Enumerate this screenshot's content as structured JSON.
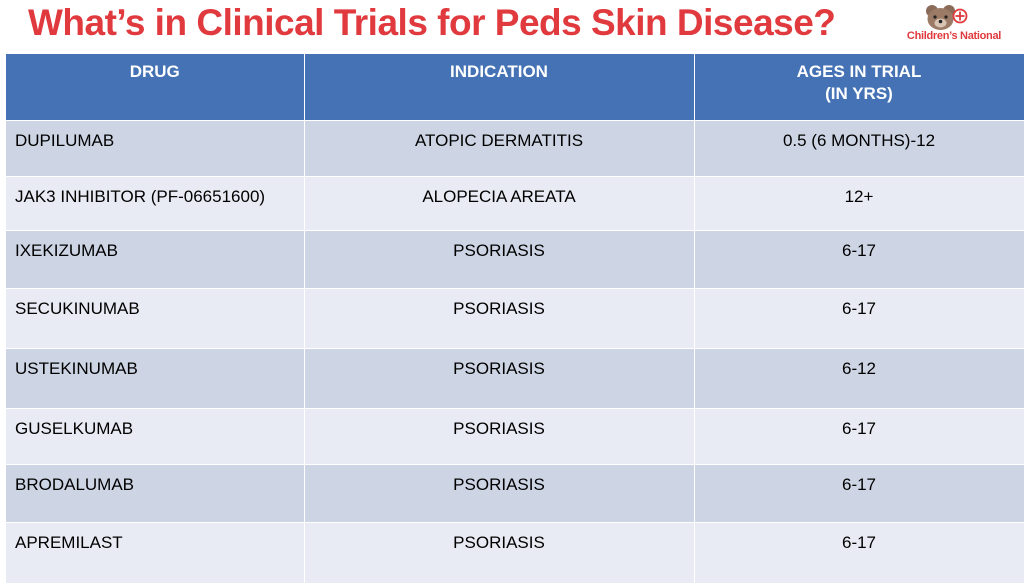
{
  "slide": {
    "title": "What’s in Clinical Trials for Peds Skin Disease?",
    "logo_text": "Children’s National"
  },
  "table": {
    "headers": [
      "DRUG",
      "INDICATION",
      "AGES IN TRIAL",
      "(IN YRS)"
    ],
    "rows": [
      {
        "drug": "DUPILUMAB",
        "indication": "ATOPIC DERMATITIS",
        "ages": "0.5 (6 MONTHS)-12"
      },
      {
        "drug": "JAK3 INHIBITOR (PF-06651600)",
        "indication": "ALOPECIA AREATA",
        "ages": "12+"
      },
      {
        "drug": "IXEKIZUMAB",
        "indication": "PSORIASIS",
        "ages": "6-17"
      },
      {
        "drug": "SECUKINUMAB",
        "indication": "PSORIASIS",
        "ages": "6-17"
      },
      {
        "drug": "USTEKINUMAB",
        "indication": "PSORIASIS",
        "ages": "6-12"
      },
      {
        "drug": "GUSELKUMAB",
        "indication": "PSORIASIS",
        "ages": "6-17"
      },
      {
        "drug": "BRODALUMAB",
        "indication": "PSORIASIS",
        "ages": "6-17"
      },
      {
        "drug": "APREMILAST",
        "indication": "PSORIASIS",
        "ages": "6-17"
      }
    ]
  },
  "colors": {
    "title": "#e03a3e",
    "header_bg": "#4472b4",
    "row_dark": "#cdd4e4",
    "row_light": "#e8ebf3"
  }
}
